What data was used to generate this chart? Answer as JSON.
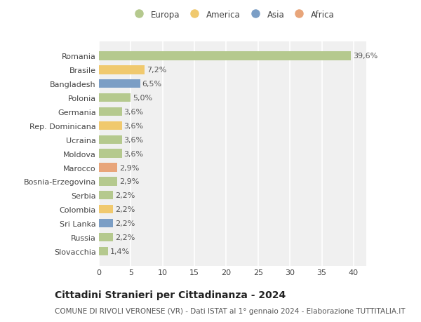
{
  "categories": [
    "Romania",
    "Brasile",
    "Bangladesh",
    "Polonia",
    "Germania",
    "Rep. Dominicana",
    "Ucraina",
    "Moldova",
    "Marocco",
    "Bosnia-Erzegovina",
    "Serbia",
    "Colombia",
    "Sri Lanka",
    "Russia",
    "Slovacchia"
  ],
  "values": [
    39.6,
    7.2,
    6.5,
    5.0,
    3.6,
    3.6,
    3.6,
    3.6,
    2.9,
    2.9,
    2.2,
    2.2,
    2.2,
    2.2,
    1.4
  ],
  "labels": [
    "39,6%",
    "7,2%",
    "6,5%",
    "5,0%",
    "3,6%",
    "3,6%",
    "3,6%",
    "3,6%",
    "2,9%",
    "2,9%",
    "2,2%",
    "2,2%",
    "2,2%",
    "2,2%",
    "1,4%"
  ],
  "continents": [
    "Europa",
    "America",
    "Asia",
    "Europa",
    "Europa",
    "America",
    "Europa",
    "Europa",
    "Africa",
    "Europa",
    "Europa",
    "America",
    "Asia",
    "Europa",
    "Europa"
  ],
  "continent_colors": {
    "Europa": "#b5c98e",
    "America": "#f0c96e",
    "Asia": "#7b9ec5",
    "Africa": "#e8a57a"
  },
  "legend_entries": [
    "Europa",
    "America",
    "Asia",
    "Africa"
  ],
  "title": "Cittadini Stranieri per Cittadinanza - 2024",
  "subtitle": "COMUNE DI RIVOLI VERONESE (VR) - Dati ISTAT al 1° gennaio 2024 - Elaborazione TUTTITALIA.IT",
  "xlim": [
    0,
    42
  ],
  "xticks": [
    0,
    5,
    10,
    15,
    20,
    25,
    30,
    35,
    40
  ],
  "background_color": "#ffffff",
  "plot_background": "#f0f0f0",
  "grid_color": "#ffffff",
  "bar_height": 0.62,
  "label_fontsize": 8,
  "tick_fontsize": 8,
  "title_fontsize": 10,
  "subtitle_fontsize": 7.5
}
